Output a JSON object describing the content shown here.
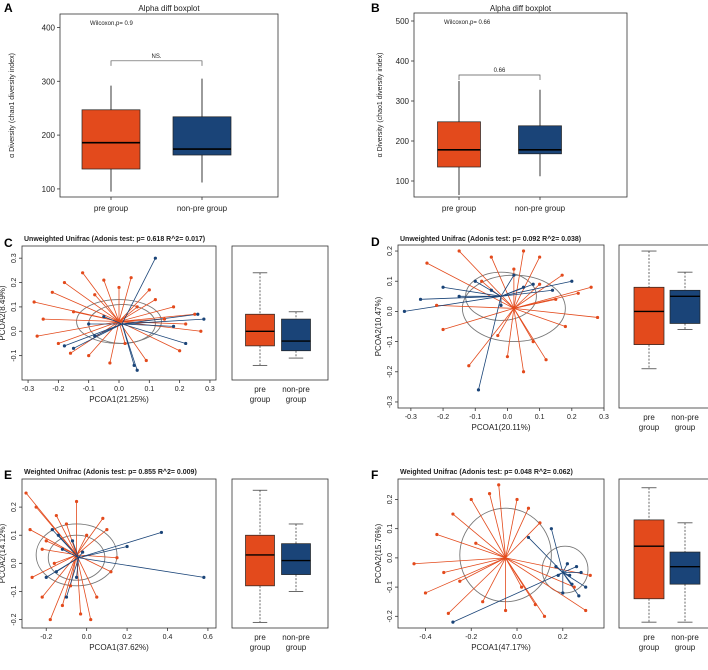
{
  "colors": {
    "pre": "#e34a1c",
    "nonpre": "#1a4478",
    "ellipse": "#777777"
  },
  "chart_data": [
    {
      "id": "A",
      "type": "boxplot",
      "panel_label": "A",
      "title": "Alpha diff boxplot",
      "ylabel": "α Diversity (chao1 diversity index)",
      "ylim": [
        85,
        425
      ],
      "yticks": [
        100,
        200,
        300,
        400
      ],
      "test_label": "Wilcoxon,p= 0.9",
      "signif_label": "NS.",
      "categories": [
        "pre group",
        "non-pre group"
      ],
      "boxes": [
        {
          "name": "pre group",
          "min": 95,
          "q1": 137,
          "median": 186,
          "q3": 247,
          "max": 292
        },
        {
          "name": "non-pre group",
          "min": 112,
          "q1": 163,
          "median": 174,
          "q3": 234,
          "max": 305
        }
      ]
    },
    {
      "id": "B",
      "type": "boxplot",
      "panel_label": "B",
      "title": "Alpha diff boxplot",
      "ylabel": "α Diversity (chao1 diversity index)",
      "ylim": [
        60,
        520
      ],
      "yticks": [
        100,
        200,
        300,
        400,
        500
      ],
      "test_label": "Wilcoxon,p= 0.66",
      "signif_label": "0.66",
      "categories": [
        "pre group",
        "non-pre group"
      ],
      "boxes": [
        {
          "name": "pre group",
          "min": 65,
          "q1": 135,
          "median": 178,
          "q3": 248,
          "max": 350
        },
        {
          "name": "non-pre group",
          "min": 112,
          "q1": 168,
          "median": 178,
          "q3": 238,
          "max": 328
        }
      ]
    },
    {
      "id": "C",
      "type": "scatter",
      "panel_label": "C",
      "title": "Unweighted Unifrac (Adonis test: p= 0.618  R^2= 0.017)",
      "xlabel": "PCOA1(21.25%)",
      "ylabel": "PCOA2(8.49%)",
      "xlim": [
        -0.32,
        0.32
      ],
      "ylim": [
        -0.2,
        0.35
      ],
      "xticks": [
        "-0.3",
        "-0.2",
        "-0.1",
        "0.0",
        "0.1",
        "0.2",
        "0.3"
      ],
      "yticks": [
        "-0.1",
        "0.0",
        "0.1",
        "0.2",
        "0.3"
      ],
      "centroids": [
        [
          0.0,
          0.04
        ],
        [
          0.01,
          0.03
        ]
      ],
      "ellipses": [
        {
          "cx": 0.0,
          "cy": 0.04,
          "rx": 0.14,
          "ry": 0.09
        },
        {
          "cx": 0.01,
          "cy": 0.03,
          "rx": 0.11,
          "ry": 0.08
        }
      ],
      "pre_points": [
        [
          -0.28,
          0.12
        ],
        [
          -0.25,
          0.05
        ],
        [
          -0.22,
          0.16
        ],
        [
          -0.2,
          -0.05
        ],
        [
          -0.18,
          0.2
        ],
        [
          -0.15,
          0.08
        ],
        [
          -0.12,
          0.24
        ],
        [
          -0.1,
          -0.1
        ],
        [
          -0.08,
          0.15
        ],
        [
          -0.05,
          0.21
        ],
        [
          -0.03,
          -0.13
        ],
        [
          0.0,
          0.18
        ],
        [
          0.02,
          -0.05
        ],
        [
          0.04,
          0.22
        ],
        [
          0.06,
          0.1
        ],
        [
          0.09,
          -0.12
        ],
        [
          0.12,
          0.13
        ],
        [
          0.15,
          0.05
        ],
        [
          0.18,
          0.1
        ],
        [
          0.2,
          -0.08
        ],
        [
          0.22,
          0.03
        ],
        [
          0.25,
          0.07
        ],
        [
          0.27,
          0.0
        ],
        [
          -0.27,
          -0.02
        ],
        [
          -0.16,
          -0.09
        ],
        [
          0.1,
          0.17
        ]
      ],
      "nonpre_points": [
        [
          0.12,
          0.3
        ],
        [
          0.22,
          -0.05
        ],
        [
          -0.15,
          -0.07
        ],
        [
          0.28,
          0.05
        ],
        [
          -0.05,
          0.06
        ],
        [
          0.05,
          -0.14
        ],
        [
          0.18,
          0.02
        ],
        [
          -0.18,
          -0.06
        ],
        [
          -0.08,
          -0.02
        ],
        [
          0.06,
          -0.16
        ],
        [
          0.26,
          0.07
        ],
        [
          -0.1,
          0.03
        ]
      ],
      "box_categories": [
        "pre\ngroup",
        "non-pre\ngroup"
      ],
      "box_ylim": [
        -0.2,
        0.35
      ],
      "boxes": [
        {
          "name": "pre group",
          "min": -0.14,
          "q1": -0.06,
          "median": 0.0,
          "q3": 0.07,
          "max": 0.24
        },
        {
          "name": "non-pre group",
          "min": -0.11,
          "q1": -0.08,
          "median": -0.04,
          "q3": 0.05,
          "max": 0.08
        }
      ]
    },
    {
      "id": "D",
      "type": "scatter",
      "panel_label": "D",
      "title": "Unweighted Unifrac (Adonis test: p= 0.092  R^2= 0.038)",
      "xlabel": "PCOA1(20.11%)",
      "ylabel": "PCOA2(10.47%)",
      "xlim": [
        -0.34,
        0.3
      ],
      "ylim": [
        -0.32,
        0.22
      ],
      "xticks": [
        "-0.3",
        "-0.2",
        "-0.1",
        "0.0",
        "0.1",
        "0.2",
        "0.3"
      ],
      "yticks": [
        "-0.3",
        "-0.2",
        "-0.1",
        "0.0",
        "0.1",
        "0.2"
      ],
      "centroids": [
        [
          0.02,
          0.01
        ],
        [
          -0.02,
          0.05
        ]
      ],
      "ellipses": [
        {
          "cx": 0.02,
          "cy": 0.01,
          "rx": 0.16,
          "ry": 0.11
        },
        {
          "cx": -0.02,
          "cy": 0.05,
          "rx": 0.11,
          "ry": 0.08
        }
      ],
      "pre_points": [
        [
          -0.25,
          0.16
        ],
        [
          -0.2,
          -0.06
        ],
        [
          -0.15,
          0.2
        ],
        [
          -0.12,
          -0.18
        ],
        [
          -0.08,
          0.1
        ],
        [
          -0.05,
          0.18
        ],
        [
          0.0,
          -0.15
        ],
        [
          0.02,
          0.14
        ],
        [
          0.05,
          0.2
        ],
        [
          0.08,
          -0.1
        ],
        [
          0.1,
          0.09
        ],
        [
          0.12,
          -0.16
        ],
        [
          0.15,
          0.04
        ],
        [
          0.18,
          -0.05
        ],
        [
          0.22,
          0.06
        ],
        [
          0.26,
          0.08
        ],
        [
          0.28,
          -0.02
        ],
        [
          0.1,
          0.18
        ],
        [
          -0.03,
          -0.08
        ],
        [
          0.05,
          -0.2
        ],
        [
          0.17,
          0.12
        ],
        [
          -0.22,
          0.02
        ]
      ],
      "nonpre_points": [
        [
          -0.32,
          0.0
        ],
        [
          -0.27,
          0.04
        ],
        [
          -0.2,
          0.08
        ],
        [
          -0.15,
          0.05
        ],
        [
          -0.1,
          0.1
        ],
        [
          -0.05,
          0.07
        ],
        [
          0.02,
          0.12
        ],
        [
          0.08,
          0.09
        ],
        [
          0.14,
          0.07
        ],
        [
          0.2,
          0.1
        ],
        [
          -0.09,
          -0.26
        ],
        [
          -0.02,
          0.02
        ],
        [
          0.05,
          0.08
        ]
      ],
      "box_categories": [
        "pre\ngroup",
        "non-pre\ngroup"
      ],
      "box_ylim": [
        -0.32,
        0.22
      ],
      "boxes": [
        {
          "name": "pre group",
          "min": -0.19,
          "q1": -0.11,
          "median": 0.0,
          "q3": 0.08,
          "max": 0.2
        },
        {
          "name": "non-pre group",
          "min": -0.06,
          "q1": -0.04,
          "median": 0.05,
          "q3": 0.07,
          "max": 0.13
        }
      ]
    },
    {
      "id": "E",
      "type": "scatter",
      "panel_label": "E",
      "title": "Weighted Unifrac (Adonis test: p= 0.855  R^2= 0.009)",
      "xlabel": "PCOA1(37.62%)",
      "ylabel": "PCOA2(14.12%)",
      "xlim": [
        -0.32,
        0.64
      ],
      "ylim": [
        -0.23,
        0.3
      ],
      "xticks": [
        "-0.2",
        "0.0",
        "0.2",
        "0.4",
        "0.6"
      ],
      "yticks": [
        "-0.2",
        "-0.1",
        "0.0",
        "0.1",
        "0.2"
      ],
      "centroids": [
        [
          -0.05,
          0.03
        ],
        [
          -0.04,
          0.02
        ]
      ],
      "ellipses": [
        {
          "cx": -0.05,
          "cy": 0.03,
          "rx": 0.2,
          "ry": 0.11
        },
        {
          "cx": -0.05,
          "cy": 0.02,
          "rx": 0.14,
          "ry": 0.08
        }
      ],
      "pre_points": [
        [
          -0.3,
          0.25
        ],
        [
          -0.28,
          0.12
        ],
        [
          -0.27,
          -0.05
        ],
        [
          -0.25,
          0.2
        ],
        [
          -0.22,
          -0.12
        ],
        [
          -0.2,
          0.08
        ],
        [
          -0.18,
          -0.2
        ],
        [
          -0.15,
          0.17
        ],
        [
          -0.12,
          -0.15
        ],
        [
          -0.1,
          0.14
        ],
        [
          -0.08,
          -0.08
        ],
        [
          -0.05,
          0.22
        ],
        [
          -0.03,
          -0.18
        ],
        [
          0.0,
          0.1
        ],
        [
          0.05,
          -0.12
        ],
        [
          0.1,
          0.12
        ],
        [
          0.12,
          -0.03
        ],
        [
          0.15,
          0.02
        ],
        [
          -0.16,
          0.0
        ],
        [
          0.02,
          -0.2
        ],
        [
          -0.22,
          0.05
        ],
        [
          0.08,
          0.16
        ]
      ],
      "nonpre_points": [
        [
          0.58,
          -0.05
        ],
        [
          0.37,
          0.11
        ],
        [
          0.2,
          0.06
        ],
        [
          -0.17,
          0.12
        ],
        [
          -0.2,
          -0.05
        ],
        [
          -0.14,
          0.1
        ],
        [
          -0.1,
          -0.12
        ],
        [
          -0.07,
          0.08
        ],
        [
          -0.12,
          0.05
        ],
        [
          -0.05,
          -0.05
        ],
        [
          -0.15,
          -0.03
        ],
        [
          -0.02,
          0.04
        ]
      ],
      "box_categories": [
        "pre\ngroup",
        "non-pre\ngroup"
      ],
      "box_ylim": [
        -0.23,
        0.3
      ],
      "boxes": [
        {
          "name": "pre group",
          "min": -0.21,
          "q1": -0.08,
          "median": 0.03,
          "q3": 0.1,
          "max": 0.26
        },
        {
          "name": "non-pre group",
          "min": -0.1,
          "q1": -0.04,
          "median": 0.01,
          "q3": 0.07,
          "max": 0.14
        }
      ]
    },
    {
      "id": "F",
      "type": "scatter",
      "panel_label": "F",
      "title": "Weighted Unifrac (Adonis test: p= 0.048  R^2= 0.062)",
      "xlabel": "PCOA1(47.17%)",
      "ylabel": "PCOA2(15.76%)",
      "xlim": [
        -0.52,
        0.38
      ],
      "ylim": [
        -0.24,
        0.27
      ],
      "xticks": [
        "-0.4",
        "-0.2",
        "0.0",
        "0.2"
      ],
      "yticks": [
        "-0.2",
        "-0.1",
        "0.0",
        "0.1",
        "0.2"
      ],
      "centroids": [
        [
          -0.05,
          0.0
        ],
        [
          0.2,
          -0.05
        ]
      ],
      "ellipses": [
        {
          "cx": -0.05,
          "cy": 0.01,
          "rx": 0.2,
          "ry": 0.16
        },
        {
          "cx": 0.21,
          "cy": -0.04,
          "rx": 0.1,
          "ry": 0.08
        }
      ],
      "pre_points": [
        [
          -0.45,
          -0.02
        ],
        [
          -0.4,
          -0.12
        ],
        [
          -0.35,
          0.08
        ],
        [
          -0.3,
          -0.19
        ],
        [
          -0.28,
          0.15
        ],
        [
          -0.25,
          -0.08
        ],
        [
          -0.2,
          0.2
        ],
        [
          -0.15,
          -0.15
        ],
        [
          -0.12,
          0.22
        ],
        [
          -0.08,
          0.25
        ],
        [
          -0.05,
          -0.18
        ],
        [
          0.0,
          0.2
        ],
        [
          0.02,
          -0.1
        ],
        [
          0.05,
          0.17
        ],
        [
          0.1,
          0.12
        ],
        [
          0.12,
          -0.2
        ],
        [
          0.25,
          -0.1
        ],
        [
          0.3,
          -0.18
        ],
        [
          0.32,
          -0.06
        ],
        [
          -0.18,
          0.05
        ],
        [
          0.08,
          -0.16
        ],
        [
          -0.32,
          -0.05
        ]
      ],
      "nonpre_points": [
        [
          -0.28,
          -0.22
        ],
        [
          0.05,
          0.07
        ],
        [
          0.15,
          0.1
        ],
        [
          0.22,
          -0.02
        ],
        [
          0.26,
          -0.03
        ],
        [
          0.18,
          -0.06
        ],
        [
          0.24,
          -0.09
        ],
        [
          0.28,
          -0.05
        ],
        [
          0.2,
          -0.12
        ],
        [
          0.3,
          -0.1
        ],
        [
          0.17,
          -0.03
        ],
        [
          0.23,
          -0.06
        ],
        [
          0.27,
          -0.13
        ]
      ],
      "box_categories": [
        "pre\ngroup",
        "non-pre\ngroup"
      ],
      "box_ylim": [
        -0.24,
        0.27
      ],
      "boxes": [
        {
          "name": "pre group",
          "min": -0.22,
          "q1": -0.14,
          "median": 0.04,
          "q3": 0.13,
          "max": 0.24
        },
        {
          "name": "non-pre group",
          "min": -0.22,
          "q1": -0.09,
          "median": -0.03,
          "q3": 0.02,
          "max": 0.12
        }
      ]
    }
  ]
}
